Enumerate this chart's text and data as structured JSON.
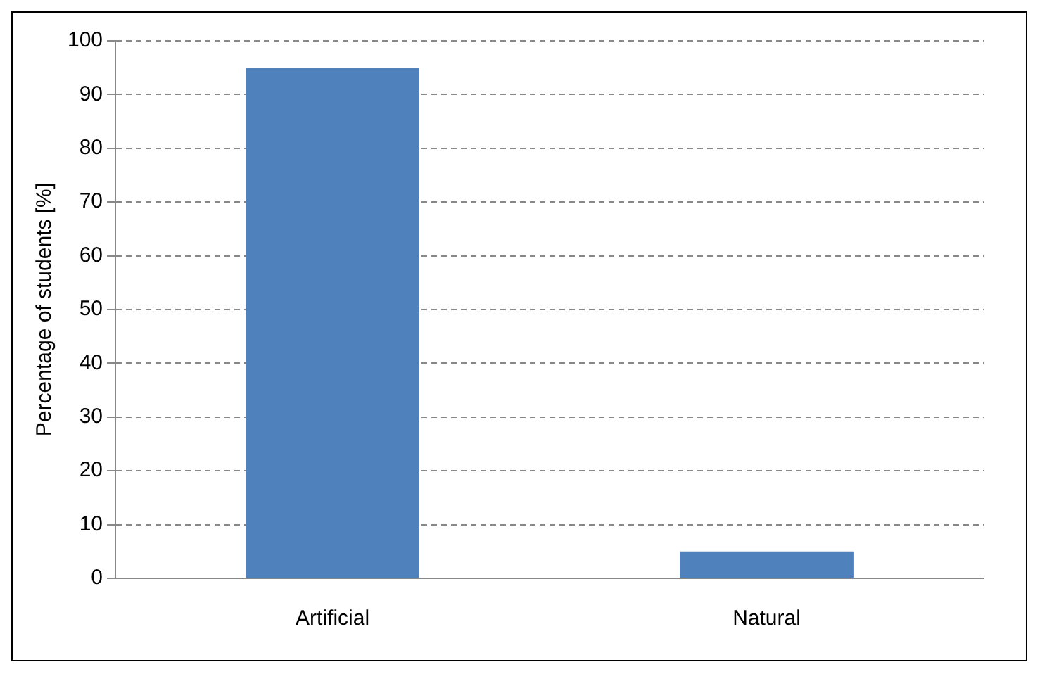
{
  "chart_data": {
    "type": "bar",
    "ylabel": "Percentage of students [%]",
    "categories": [
      "Artificial",
      "Natural"
    ],
    "values": [
      95,
      5
    ],
    "color": "#4f81bd",
    "ylim": [
      0,
      100
    ],
    "yticks": [
      0,
      10,
      20,
      30,
      40,
      50,
      60,
      70,
      80,
      90,
      100
    ],
    "grid": "y",
    "legend": false
  }
}
